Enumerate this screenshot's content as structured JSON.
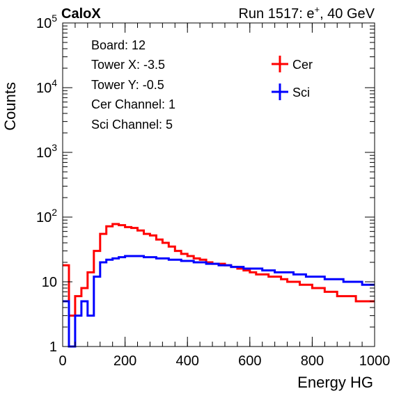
{
  "header": {
    "experiment": "CaloX",
    "run_prefix": "Run 1517: e",
    "run_sup": "+",
    "run_suffix": ", 40 GeV"
  },
  "info_lines": [
    "Board: 12",
    "Tower X: -3.5",
    "Tower Y: -0.5",
    "Cer Channel: 1",
    "Sci Channel: 5"
  ],
  "colors": {
    "cer": "#ff0000",
    "sci": "#0000ff"
  },
  "chart_data": {
    "type": "line",
    "xlabel": "Energy HG",
    "ylabel": "Counts",
    "xlim": [
      0,
      1000
    ],
    "ylim": [
      1,
      100000
    ],
    "y_scale": "log",
    "x_ticks": [
      {
        "value": 0,
        "label": "0"
      },
      {
        "value": 200,
        "label": "200"
      },
      {
        "value": 400,
        "label": "400"
      },
      {
        "value": 600,
        "label": "600"
      },
      {
        "value": 800,
        "label": "800"
      },
      {
        "value": 1000,
        "label": "1000"
      }
    ],
    "y_ticks": [
      {
        "value": 1,
        "base": "1",
        "exp": ""
      },
      {
        "value": 10,
        "base": "10",
        "exp": ""
      },
      {
        "value": 100,
        "base": "10",
        "exp": "2"
      },
      {
        "value": 1000,
        "base": "10",
        "exp": "3"
      },
      {
        "value": 10000,
        "base": "10",
        "exp": "4"
      },
      {
        "value": 100000,
        "base": "10",
        "exp": "5"
      }
    ],
    "grid": false,
    "legend_position": "top-right",
    "series": [
      {
        "name": "Cer",
        "color": "#ff0000",
        "x": [
          0,
          20,
          40,
          60,
          80,
          100,
          120,
          140,
          160,
          180,
          200,
          220,
          240,
          260,
          280,
          300,
          320,
          340,
          360,
          380,
          400,
          420,
          440,
          460,
          480,
          500,
          520,
          540,
          560,
          580,
          600,
          620,
          640,
          660,
          680,
          700,
          720,
          740,
          760,
          780,
          800,
          820,
          840,
          860,
          880,
          900,
          920,
          940,
          960,
          980,
          1000
        ],
        "y": [
          18,
          3,
          6,
          8,
          14,
          30,
          55,
          72,
          78,
          75,
          70,
          68,
          62,
          55,
          52,
          45,
          40,
          35,
          30,
          27,
          25,
          23,
          22,
          20,
          19,
          19,
          18,
          17,
          16,
          15,
          14,
          13,
          13,
          12,
          12,
          11,
          10,
          10,
          9,
          9,
          8,
          8,
          7,
          7,
          6,
          6,
          6,
          5,
          5,
          5,
          5
        ]
      },
      {
        "name": "Sci",
        "color": "#0000ff",
        "x": [
          0,
          20,
          40,
          60,
          80,
          100,
          120,
          140,
          160,
          180,
          200,
          220,
          240,
          260,
          280,
          300,
          320,
          340,
          360,
          380,
          400,
          420,
          440,
          460,
          480,
          500,
          520,
          540,
          560,
          580,
          600,
          620,
          640,
          660,
          680,
          700,
          720,
          740,
          760,
          780,
          800,
          820,
          840,
          860,
          880,
          900,
          920,
          940,
          960,
          980,
          1000
        ],
        "y": [
          5,
          1,
          3,
          5,
          3,
          12,
          20,
          22,
          23,
          24,
          25,
          25,
          25,
          24,
          24,
          23,
          23,
          22,
          22,
          21,
          21,
          20,
          20,
          19,
          19,
          18,
          18,
          17,
          17,
          16,
          16,
          16,
          15,
          15,
          14,
          14,
          14,
          13,
          13,
          12,
          12,
          12,
          11,
          11,
          11,
          10,
          10,
          10,
          9,
          9,
          9
        ]
      }
    ]
  }
}
